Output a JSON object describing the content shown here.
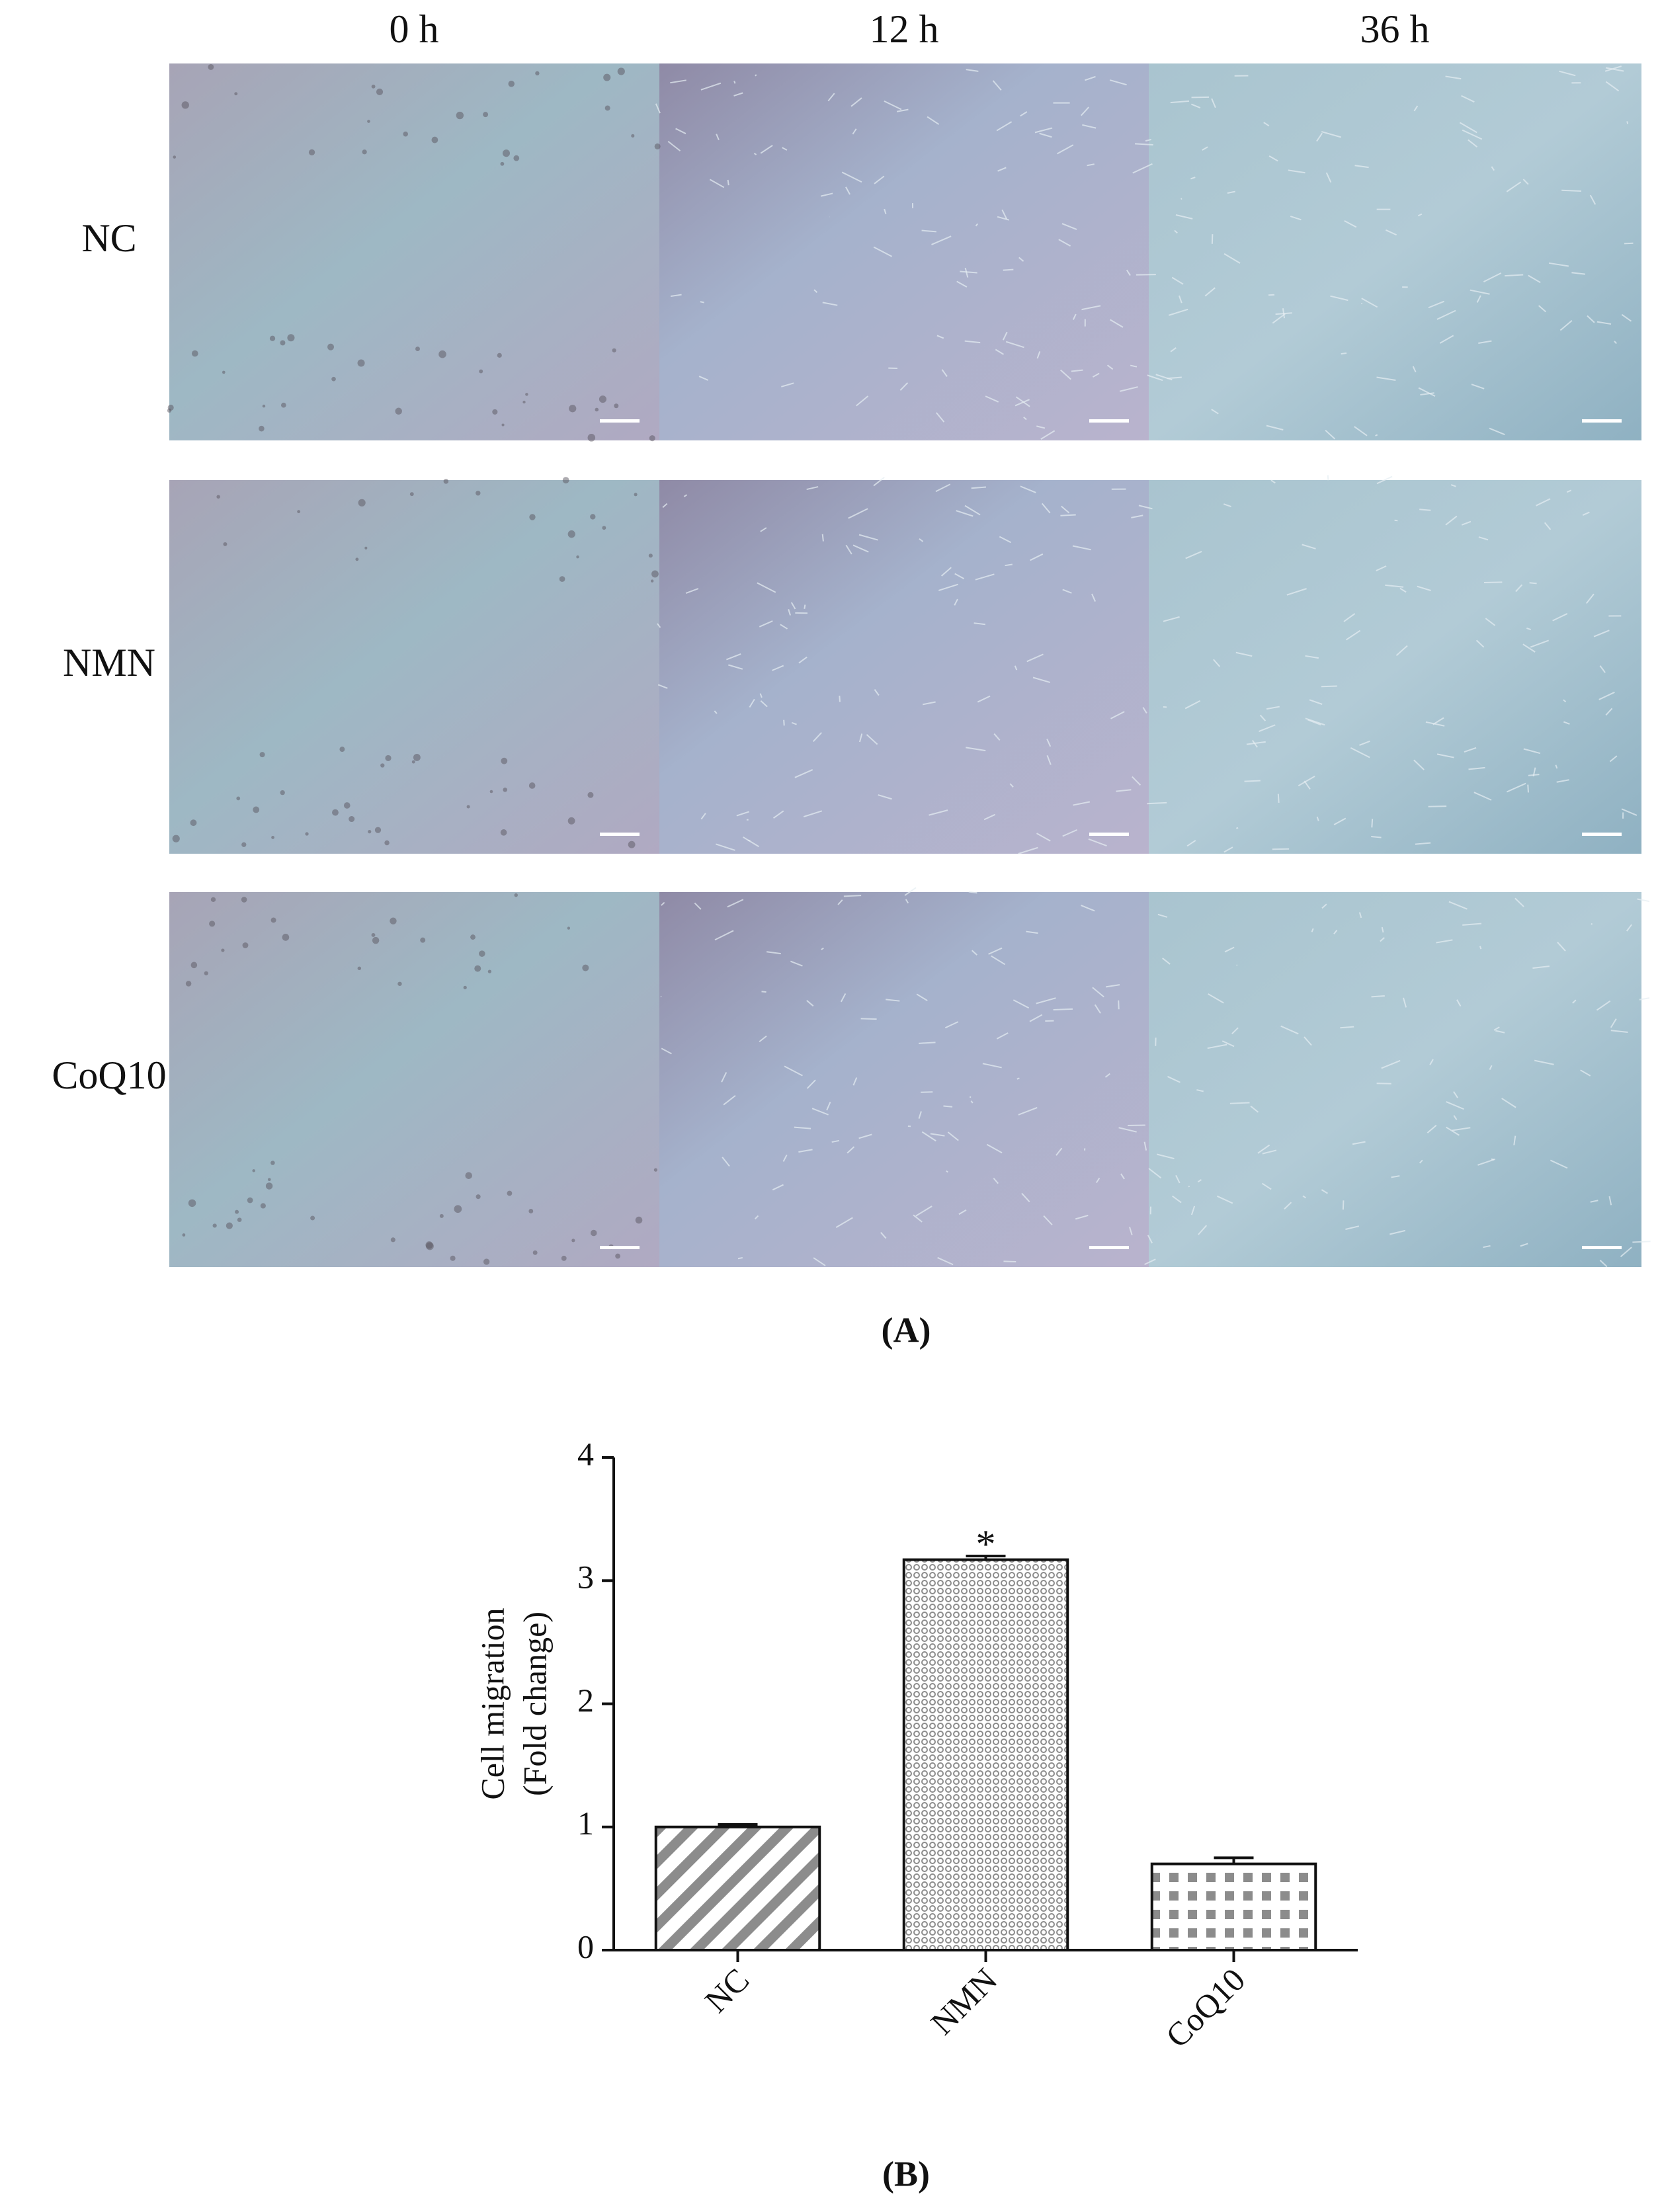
{
  "figure_a": {
    "columns": [
      "0 h",
      "12 h",
      "36 h"
    ],
    "rows": [
      "NC",
      "NMN",
      "CoQ10"
    ],
    "caption": "(A)"
  },
  "chart_data": {
    "type": "bar",
    "y_label": [
      "Cell migration",
      "(Fold change)"
    ],
    "categories": [
      "NC",
      "NMN",
      "CoQ10"
    ],
    "values": [
      1.0,
      3.17,
      0.7
    ],
    "errors": [
      0.02,
      0.03,
      0.05
    ],
    "significance": [
      null,
      "*",
      null
    ],
    "patterns": [
      "diagonal",
      "dots",
      "grid"
    ],
    "color": "#8c8c8c",
    "ylim": [
      0,
      4
    ],
    "yticks": [
      0,
      1,
      2,
      3,
      4
    ],
    "grid": false,
    "caption": "(B)"
  }
}
